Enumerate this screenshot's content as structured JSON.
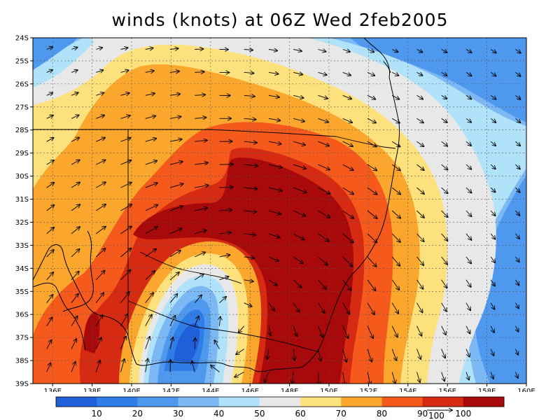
{
  "title": "winds (knots) at 06Z Wed 2feb2005",
  "map": {
    "lon_range": [
      135,
      160
    ],
    "lat_range": [
      -39,
      -24
    ],
    "lat_ticks": [
      {
        "v": -24,
        "label": "24S"
      },
      {
        "v": -25,
        "label": "25S"
      },
      {
        "v": -26,
        "label": "26S"
      },
      {
        "v": -27,
        "label": "27S"
      },
      {
        "v": -28,
        "label": "28S"
      },
      {
        "v": -29,
        "label": "29S"
      },
      {
        "v": -30,
        "label": "30S"
      },
      {
        "v": -31,
        "label": "31S"
      },
      {
        "v": -32,
        "label": "32S"
      },
      {
        "v": -33,
        "label": "33S"
      },
      {
        "v": -34,
        "label": "34S"
      },
      {
        "v": -35,
        "label": "35S"
      },
      {
        "v": -36,
        "label": "36S"
      },
      {
        "v": -37,
        "label": "37S"
      },
      {
        "v": -38,
        "label": "38S"
      },
      {
        "v": -39,
        "label": "39S"
      }
    ],
    "lon_ticks": [
      {
        "v": 136,
        "label": "136E"
      },
      {
        "v": 138,
        "label": "138E"
      },
      {
        "v": 140,
        "label": "140E"
      },
      {
        "v": 142,
        "label": "142E"
      },
      {
        "v": 144,
        "label": "144E"
      },
      {
        "v": 146,
        "label": "146E"
      },
      {
        "v": 148,
        "label": "148E"
      },
      {
        "v": 150,
        "label": "150E"
      },
      {
        "v": 152,
        "label": "152E"
      },
      {
        "v": 154,
        "label": "154E"
      },
      {
        "v": 156,
        "label": "156E"
      },
      {
        "v": 158,
        "label": "158E"
      },
      {
        "v": 160,
        "label": "160E"
      }
    ],
    "grid": true,
    "vectors": true
  },
  "colorbar": {
    "levels": [
      "10",
      "20",
      "30",
      "40",
      "50",
      "60",
      "70",
      "80",
      "90",
      "100"
    ],
    "colors": [
      "#1f5fd9",
      "#2f7ee8",
      "#4e98ee",
      "#7cb8f4",
      "#b0e2fa",
      "#e8e8e8",
      "#fde17c",
      "#fba62c",
      "#f5591c",
      "#d62a12",
      "#a8090a"
    ],
    "reference_vector_label": "100"
  }
}
